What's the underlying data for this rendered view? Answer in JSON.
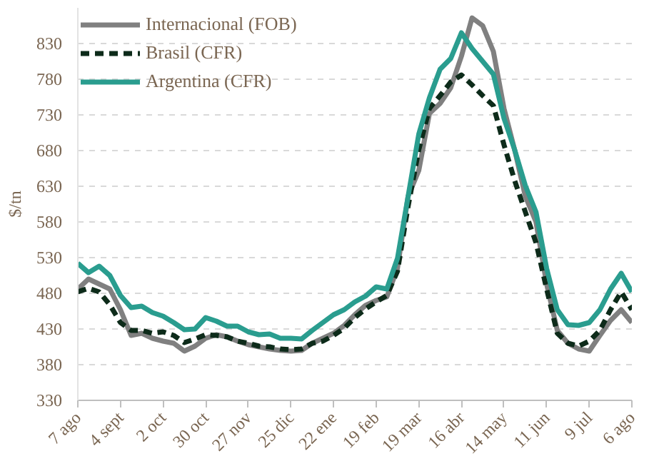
{
  "chart_data": {
    "type": "line",
    "ylabel": "$/tn",
    "categories": [
      "7 ago",
      null,
      null,
      null,
      "4 sept",
      null,
      null,
      null,
      "2 oct",
      null,
      null,
      null,
      "30 oct",
      null,
      null,
      null,
      "27 nov",
      null,
      null,
      null,
      "25 dic",
      null,
      null,
      null,
      "22 ene",
      null,
      null,
      null,
      "19 feb",
      null,
      null,
      null,
      "19 mar",
      null,
      null,
      null,
      "16 abr",
      null,
      null,
      null,
      "14 may",
      null,
      null,
      null,
      "11 jun",
      null,
      null,
      null,
      "9 jul",
      null,
      null,
      null,
      "6 ago"
    ],
    "ylim": [
      330,
      880
    ],
    "yticks": [
      330,
      380,
      430,
      480,
      530,
      580,
      630,
      680,
      730,
      780,
      830
    ],
    "grid": "y",
    "legend": "top left",
    "series": [
      {
        "name": "Internacional (FOB)",
        "color": "#808080",
        "line_style": "solid",
        "values": [
          486,
          500,
          493,
          486,
          457,
          421,
          424,
          417,
          413,
          410,
          399,
          406,
          417,
          422,
          419,
          413,
          408,
          405,
          402,
          400,
          399,
          400,
          410,
          417,
          424,
          435,
          450,
          463,
          470,
          475,
          515,
          616,
          652,
          732,
          746,
          768,
          812,
          866,
          855,
          819,
          739,
          681,
          616,
          580,
          493,
          428,
          410,
          402,
          399,
          421,
          442,
          457,
          439
        ]
      },
      {
        "name": "Brasil (CFR)",
        "color": "#0d2b1a",
        "line_style": "dashed",
        "values": [
          482,
          487,
          482,
          464,
          439,
          428,
          428,
          424,
          426,
          421,
          411,
          416,
          422,
          421,
          419,
          413,
          410,
          406,
          405,
          402,
          401,
          402,
          410,
          413,
          421,
          431,
          446,
          458,
          468,
          477,
          511,
          602,
          681,
          739,
          757,
          776,
          786,
          772,
          757,
          743,
          688,
          638,
          594,
          551,
          486,
          424,
          410,
          406,
          413,
          428,
          457,
          482,
          457
        ]
      },
      {
        "name": "Argentina (CFR)",
        "color": "#2a9d8f",
        "line_style": "solid",
        "values": [
          522,
          509,
          518,
          505,
          477,
          460,
          462,
          453,
          448,
          439,
          429,
          430,
          446,
          441,
          434,
          434,
          426,
          422,
          423,
          417,
          417,
          416,
          428,
          439,
          450,
          457,
          468,
          476,
          489,
          486,
          529,
          616,
          703,
          754,
          794,
          809,
          845,
          823,
          805,
          787,
          725,
          681,
          631,
          594,
          515,
          457,
          436,
          435,
          439,
          457,
          486,
          508,
          482
        ]
      }
    ]
  }
}
